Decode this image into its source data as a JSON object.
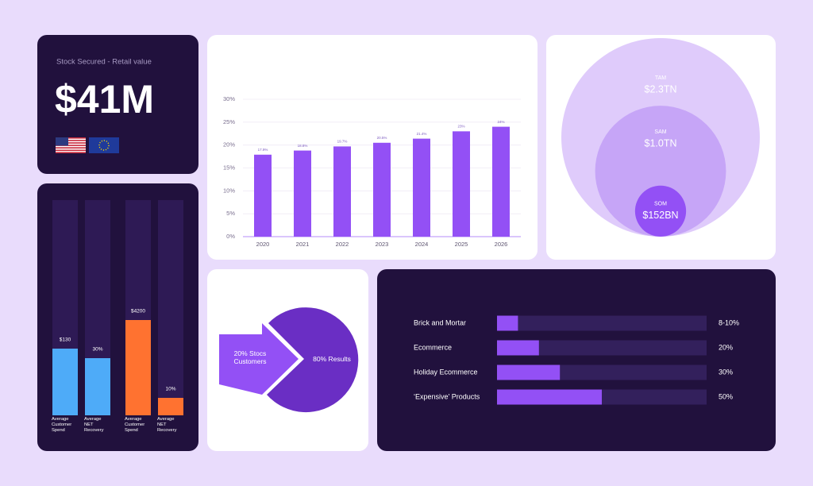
{
  "stat_card": {
    "label": "Stock Secured - Retail value",
    "value": "$41M"
  },
  "chart_data": [
    {
      "type": "bar",
      "categories": [
        "2020",
        "2021",
        "2022",
        "2023",
        "2024",
        "2025",
        "2026"
      ],
      "values": [
        17.9,
        18.8,
        19.7,
        20.5,
        21.4,
        23,
        24
      ],
      "value_labels": [
        "17.9%",
        "18.8%",
        "19.7%",
        "20.5%",
        "21.4%",
        "23%",
        "24%"
      ],
      "color": "#9350f5",
      "ylim": [
        0,
        30
      ],
      "yticks": [
        {
          "value": 0,
          "label": "0%"
        },
        {
          "value": 5,
          "label": "5%"
        },
        {
          "value": 10,
          "label": "10%"
        },
        {
          "value": 15,
          "label": "15%"
        },
        {
          "value": 20,
          "label": "20%"
        },
        {
          "value": 25,
          "label": "25%"
        },
        {
          "value": 30,
          "label": "30%"
        }
      ],
      "grid": true
    },
    {
      "type": "nested-circles",
      "categories": [
        "TAM",
        "SAM",
        "SOM"
      ],
      "values": [
        2300,
        1000,
        152
      ],
      "value_labels": [
        "$2.3TN",
        "$1.0TN",
        "$152BN"
      ],
      "colors": [
        "#dfcbfb",
        "#c6a5f7",
        "#9350f5"
      ]
    },
    {
      "type": "horizontal-bar",
      "categories": [
        "Brick and Mortar",
        "Ecommerce",
        "Holiday Ecommerce",
        "‘Expensive’ Products"
      ],
      "values": [
        10,
        20,
        30,
        50
      ],
      "value_labels": [
        "8-10%",
        "20%",
        "30%",
        "50%"
      ],
      "color": "#9350f5",
      "xlim": [
        0,
        100
      ]
    }
  ],
  "kpi_bars": [
    {
      "label": "$130",
      "caption": "Average Customer Spend",
      "color": "#4eabf8"
    },
    {
      "label": "30%",
      "caption": "Average NET Recovery",
      "color": "#4eabf8"
    },
    {
      "label": "$4200",
      "caption": "Average Customer Spend",
      "color": "#ff7230"
    },
    {
      "label": "10%",
      "caption": "Average NET Recovery",
      "color": "#ff7230"
    }
  ],
  "pareto": {
    "input": "20% Stocs Customers",
    "output": "80% Results"
  }
}
